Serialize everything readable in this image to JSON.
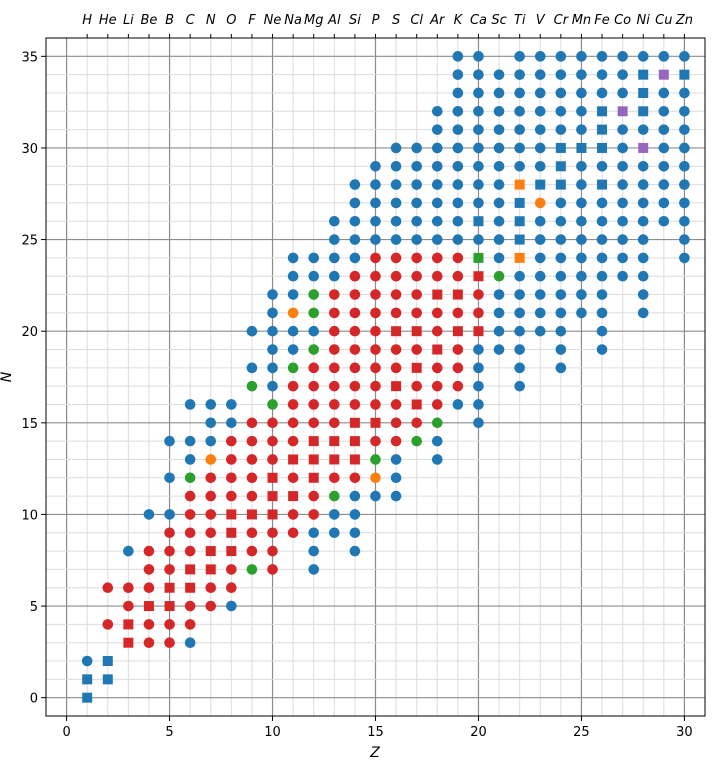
{
  "chart_data": {
    "type": "scatter",
    "title": "",
    "xlabel": "Z",
    "ylabel": "N",
    "xlim": [
      -1,
      31
    ],
    "ylim": [
      -1,
      36
    ],
    "grid": "major and minor",
    "x_ticks": [
      "0",
      "5",
      "10",
      "15",
      "20",
      "25",
      "30"
    ],
    "y_ticks": [
      "0",
      "5",
      "10",
      "15",
      "20",
      "25",
      "30",
      "35"
    ],
    "top_axis_labels": [
      "H",
      "He",
      "Li",
      "Be",
      "B",
      "C",
      "N",
      "O",
      "F",
      "Ne",
      "Na",
      "Mg",
      "Al",
      "Si",
      "P",
      "S",
      "Cl",
      "Ar",
      "K",
      "Ca",
      "Sc",
      "Ti",
      "V",
      "Cr",
      "Mn",
      "Fe",
      "Co",
      "Ni",
      "Cu",
      "Zn"
    ],
    "colors": {
      "blue": "#1f77b4",
      "red": "#d62728",
      "green": "#2ca02c",
      "orange": "#ff7f0e",
      "purple": "#9467bd"
    },
    "markers": {
      "blue": "circle",
      "red": "circle",
      "green": "circle",
      "orange": "circle",
      "purple": "circle",
      "blueSquare": "square",
      "redSquare": "square",
      "orangeSquare": "square",
      "greenSquare": "square",
      "purpleSquare": "square"
    },
    "columns": {
      "1": {
        "blue": [
          2
        ],
        "blueSquare": [
          0,
          1
        ]
      },
      "2": {
        "red": [
          4,
          6
        ],
        "blueSquare": [
          1,
          2
        ]
      },
      "3": {
        "red": [
          5,
          6
        ],
        "redSquare": [
          3,
          4
        ],
        "blue": [
          8
        ]
      },
      "4": {
        "red": [
          3,
          4,
          6,
          7,
          8
        ],
        "redSquare": [
          5
        ],
        "blue": [
          10
        ]
      },
      "5": {
        "red": [
          3,
          4,
          7,
          8,
          9
        ],
        "redSquare": [
          5,
          6
        ],
        "blue": [
          10,
          12,
          14
        ]
      },
      "6": {
        "red": [
          4,
          5,
          8,
          9,
          10,
          11
        ],
        "redSquare": [
          6,
          7
        ],
        "green": [
          12
        ],
        "blue": [
          3,
          13,
          14,
          16
        ]
      },
      "7": {
        "red": [
          5,
          6,
          9,
          10,
          11,
          12
        ],
        "redSquare": [
          7,
          8
        ],
        "orange": [
          13
        ],
        "blue": [
          14,
          15,
          16
        ]
      },
      "8": {
        "red": [
          6,
          7,
          11,
          12,
          13,
          14
        ],
        "redSquare": [
          8,
          9,
          10
        ],
        "blue": [
          5,
          15,
          16
        ]
      },
      "9": {
        "red": [
          8,
          9,
          11,
          12,
          13,
          14,
          15
        ],
        "redSquare": [
          10
        ],
        "green": [
          7,
          17
        ],
        "blue": [
          18,
          20
        ]
      },
      "10": {
        "red": [
          7,
          8,
          9,
          13,
          14,
          15
        ],
        "redSquare": [
          10,
          11,
          12
        ],
        "green": [
          16
        ],
        "blue": [
          17,
          18,
          19,
          20,
          21,
          22
        ]
      },
      "11": {
        "red": [
          9,
          10,
          12,
          14,
          15,
          16,
          17
        ],
        "redSquare": [
          11,
          13
        ],
        "green": [
          18
        ],
        "orange": [
          21
        ],
        "blue": [
          19,
          20,
          22,
          23,
          24
        ]
      },
      "12": {
        "red": [
          10,
          11,
          15,
          16,
          17,
          18
        ],
        "redSquare": [
          12,
          13,
          14
        ],
        "green": [
          19,
          21,
          22
        ],
        "blue": [
          7,
          8,
          9,
          20,
          23,
          24
        ]
      },
      "13": {
        "red": [
          12,
          15,
          16,
          17,
          18,
          19,
          20,
          21,
          22
        ],
        "redSquare": [
          13,
          14
        ],
        "green": [
          11
        ],
        "blue": [
          9,
          10,
          23,
          24,
          25,
          26
        ]
      },
      "14": {
        "red": [
          12,
          16,
          17,
          18,
          19,
          20,
          21,
          22,
          23
        ],
        "redSquare": [
          13,
          14,
          15
        ],
        "blue": [
          8,
          9,
          10,
          11,
          24,
          25,
          26,
          27,
          28
        ]
      },
      "15": {
        "red": [
          14,
          16,
          17,
          18,
          19,
          20,
          21,
          22,
          23,
          24
        ],
        "redSquare": [
          15
        ],
        "green": [
          13
        ],
        "orange": [
          12
        ],
        "blue": [
          11,
          25,
          26,
          27,
          28,
          29
        ]
      },
      "16": {
        "red": [
          14,
          15,
          16,
          18,
          19,
          21,
          22,
          23,
          24
        ],
        "redSquare": [
          17,
          20
        ],
        "blue": [
          11,
          12,
          13,
          25,
          26,
          27,
          28,
          29,
          30
        ]
      },
      "17": {
        "red": [
          15,
          17,
          19,
          21,
          22,
          23,
          24
        ],
        "redSquare": [
          16,
          18,
          20
        ],
        "green": [
          14
        ],
        "blue": [
          25,
          26,
          27,
          28,
          29,
          30
        ]
      },
      "18": {
        "red": [
          16,
          17,
          18,
          20,
          21,
          23,
          24
        ],
        "redSquare": [
          19,
          22
        ],
        "green": [
          15
        ],
        "blue": [
          13,
          14,
          25,
          26,
          27,
          28,
          29,
          30,
          31,
          32
        ]
      },
      "19": {
        "red": [
          17,
          18,
          19,
          21,
          23,
          24
        ],
        "redSquare": [
          20,
          22
        ],
        "blue": [
          16,
          25,
          26,
          27,
          28,
          29,
          30,
          31,
          32,
          33,
          34,
          35
        ]
      },
      "20": {
        "red": [
          21,
          22
        ],
        "redSquare": [
          20,
          23
        ],
        "greenSquare": [
          24
        ],
        "blueSquare": [
          26
        ],
        "blue": [
          15,
          16,
          17,
          18,
          19,
          25,
          27,
          28,
          29,
          30,
          31,
          32,
          33,
          34,
          35
        ]
      },
      "21": {
        "green": [
          23
        ],
        "blue": [
          19,
          20,
          21,
          22,
          24,
          25,
          26,
          27,
          28,
          29,
          30,
          31,
          32,
          33,
          34
        ]
      },
      "22": {
        "orangeSquare": [
          24,
          28
        ],
        "blueSquare": [
          25,
          26,
          27
        ],
        "blue": [
          17,
          18,
          19,
          20,
          21,
          22,
          23,
          29,
          30,
          31,
          32,
          33,
          34,
          35
        ]
      },
      "23": {
        "orange": [
          27
        ],
        "blueSquare": [
          28
        ],
        "blue": [
          20,
          21,
          22,
          23,
          24,
          25,
          26,
          29,
          30,
          31,
          32,
          33,
          34,
          35
        ]
      },
      "24": {
        "blueSquare": [
          28,
          29,
          30
        ],
        "blue": [
          18,
          19,
          20,
          21,
          22,
          23,
          24,
          25,
          26,
          27,
          31,
          32,
          33,
          34,
          35
        ]
      },
      "25": {
        "blueSquare": [
          30
        ],
        "blue": [
          21,
          22,
          23,
          24,
          25,
          26,
          27,
          28,
          29,
          31,
          32,
          33,
          34,
          35
        ]
      },
      "26": {
        "blueSquare": [
          28,
          30,
          31,
          32
        ],
        "blue": [
          19,
          20,
          21,
          22,
          23,
          24,
          25,
          26,
          27,
          29,
          33,
          34,
          35
        ]
      },
      "27": {
        "purpleSquare": [
          32
        ],
        "blue": [
          23,
          24,
          25,
          26,
          27,
          28,
          29,
          30,
          31,
          33,
          34,
          35
        ]
      },
      "28": {
        "purpleSquare": [
          30
        ],
        "blueSquare": [
          32,
          33,
          34
        ],
        "blue": [
          21,
          22,
          23,
          24,
          25,
          26,
          27,
          28,
          29,
          31,
          35
        ]
      },
      "29": {
        "purpleSquare": [
          34
        ],
        "blue": [
          26,
          27,
          28,
          29,
          30,
          31,
          32,
          33,
          35
        ]
      },
      "30": {
        "blueSquare": [
          34
        ],
        "blue": [
          24,
          25,
          26,
          27,
          28,
          29,
          30,
          31,
          32,
          33,
          35
        ]
      }
    }
  }
}
